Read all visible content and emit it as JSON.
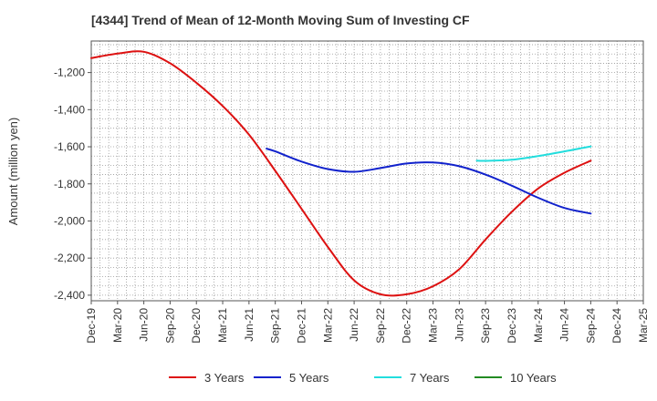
{
  "chart_data": {
    "type": "line",
    "title": "[4344]  Trend of Mean of 12-Month Moving Sum of Investing CF",
    "xlabel": "",
    "ylabel": "Amount (million yen)",
    "ylim": [
      -2430,
      -1030
    ],
    "yticks": [
      -1200,
      -1400,
      -1600,
      -1800,
      -2000,
      -2200,
      -2400
    ],
    "ytick_labels": [
      "-1,200",
      "-1,400",
      "-1,600",
      "-1,800",
      "-2,000",
      "-2,200",
      "-2,400"
    ],
    "x_categories": [
      "Dec-19",
      "Mar-20",
      "Jun-20",
      "Sep-20",
      "Dec-20",
      "Mar-21",
      "Jun-21",
      "Sep-21",
      "Dec-21",
      "Mar-22",
      "Jun-22",
      "Sep-22",
      "Dec-22",
      "Mar-23",
      "Jun-23",
      "Sep-23",
      "Dec-23",
      "Mar-24",
      "Jun-24",
      "Sep-24",
      "Dec-24",
      "Mar-25"
    ],
    "grid": true,
    "legend_position": "bottom",
    "series": [
      {
        "name": "3 Years",
        "color": "#dd1111",
        "points": [
          [
            "Dec-19",
            -1122
          ],
          [
            "Mar-20",
            -1098
          ],
          [
            "Jun-20",
            -1088
          ],
          [
            "Sep-20",
            -1150
          ],
          [
            "Dec-20",
            -1255
          ],
          [
            "Mar-21",
            -1380
          ],
          [
            "Jun-21",
            -1535
          ],
          [
            "Sep-21",
            -1730
          ],
          [
            "Dec-21",
            -1935
          ],
          [
            "Mar-22",
            -2140
          ],
          [
            "Jun-22",
            -2320
          ],
          [
            "Sep-22",
            -2395
          ],
          [
            "Dec-22",
            -2395
          ],
          [
            "Mar-23",
            -2352
          ],
          [
            "Jun-23",
            -2260
          ],
          [
            "Sep-23",
            -2100
          ],
          [
            "Dec-23",
            -1950
          ],
          [
            "Mar-24",
            -1825
          ],
          [
            "Jun-24",
            -1740
          ],
          [
            "Sep-24",
            -1675
          ]
        ]
      },
      {
        "name": "5 Years",
        "color": "#1122cc",
        "points": [
          [
            "Aug-21",
            -1610
          ],
          [
            "Sep-21",
            -1625
          ],
          [
            "Dec-21",
            -1680
          ],
          [
            "Mar-22",
            -1720
          ],
          [
            "Jun-22",
            -1735
          ],
          [
            "Sep-22",
            -1715
          ],
          [
            "Dec-22",
            -1690
          ],
          [
            "Mar-23",
            -1685
          ],
          [
            "Jun-23",
            -1705
          ],
          [
            "Sep-23",
            -1750
          ],
          [
            "Dec-23",
            -1810
          ],
          [
            "Mar-24",
            -1875
          ],
          [
            "Jun-24",
            -1930
          ],
          [
            "Sep-24",
            -1960
          ]
        ]
      },
      {
        "name": "7 Years",
        "color": "#22dddd",
        "points": [
          [
            "Aug-23",
            -1675
          ],
          [
            "Sep-23",
            -1676
          ],
          [
            "Dec-23",
            -1670
          ],
          [
            "Mar-24",
            -1650
          ],
          [
            "Jun-24",
            -1625
          ],
          [
            "Sep-24",
            -1598
          ]
        ]
      },
      {
        "name": "10 Years",
        "color": "#228b22",
        "points": []
      }
    ]
  }
}
